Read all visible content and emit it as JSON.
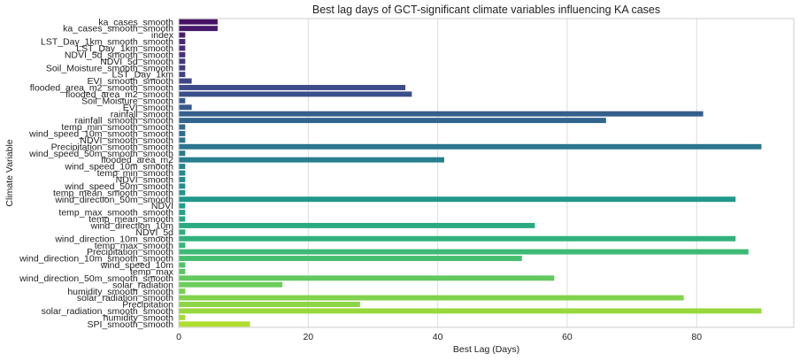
{
  "chart_data": {
    "type": "bar",
    "orientation": "horizontal",
    "title": "Best lag days of GCT-significant climate variables influencing KA cases",
    "xlabel": "Best Lag (Days)",
    "ylabel": "Climate Variable",
    "xlim": [
      0,
      95
    ],
    "xticks": [
      0,
      20,
      40,
      60,
      80
    ],
    "grid": true,
    "palette": "viridis",
    "categories": [
      "ka_cases_smooth",
      "ka_cases_smooth_smooth",
      "index",
      "LST_Day_1km_smooth_smooth",
      "LST_Day_1km_smooth",
      "NDVI_5d_smooth_smooth",
      "NDVI_5d_smooth",
      "Soil_Moisture_smooth_smooth",
      "LST_Day_1km",
      "EVI_smooth_smooth",
      "flooded_area_m2_smooth_smooth",
      "flooded_area_m2_smooth",
      "Soil_Moisture_smooth",
      "EVI_smooth",
      "rainfall_smooth",
      "rainfall_smooth_smooth",
      "temp_min_smooth_smooth",
      "wind_speed_10m_smooth_smooth",
      "NDVI_smooth_smooth",
      "Precipitation_smooth_smooth",
      "wind_speed_50m_smooth_smooth",
      "flooded_area_m2",
      "wind_speed_10m_smooth",
      "temp_min_smooth",
      "NDVI_smooth",
      "wind_speed_50m_smooth",
      "temp_mean_smooth_smooth",
      "wind_direction_50m_smooth",
      "NDVI",
      "temp_max_smooth_smooth",
      "temp_mean_smooth",
      "wind_direction_10m",
      "NDVI_5d",
      "wind_direction_10m_smooth",
      "temp_max_smooth",
      "Precipitation_smooth",
      "wind_direction_10m_smooth_smooth",
      "wind_speed_10m",
      "temp_max",
      "wind_direction_50m_smooth_smooth",
      "solar_radiation",
      "humidity_smooth_smooth",
      "solar_radiation_smooth",
      "Precipitation",
      "solar_radiation_smooth_smooth",
      "humidity_smooth",
      "SPI_smooth_smooth"
    ],
    "values": [
      6,
      6,
      1,
      1,
      1,
      1,
      1,
      1,
      1,
      2,
      35,
      36,
      1,
      2,
      81,
      66,
      1,
      1,
      1,
      90,
      1,
      41,
      1,
      1,
      1,
      1,
      1,
      86,
      1,
      1,
      1,
      55,
      1,
      86,
      1,
      88,
      53,
      1,
      1,
      58,
      16,
      1,
      78,
      28,
      90,
      1,
      11
    ]
  }
}
